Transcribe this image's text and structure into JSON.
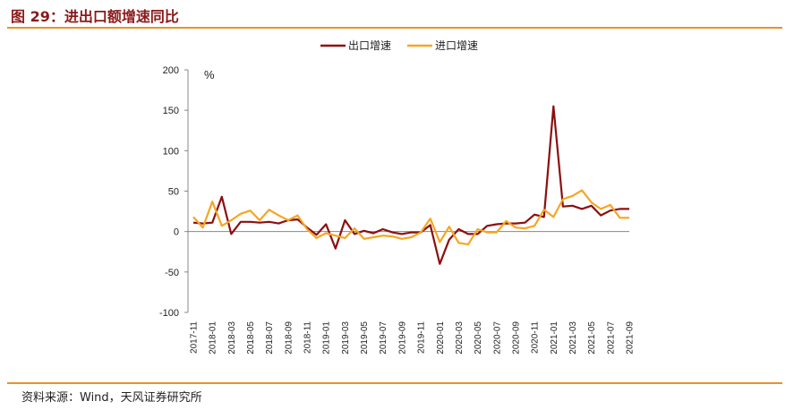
{
  "figure": {
    "title": "图 29：进出口额增速同比",
    "source": "资料来源：Wind，天风证券研究所"
  },
  "chart_data": {
    "type": "line",
    "ylabel": "%",
    "ylim": [
      -100,
      200
    ],
    "yticks": [
      -100,
      -50,
      0,
      50,
      100,
      150,
      200
    ],
    "legend_position": "top-center",
    "grid": false,
    "x_labels": [
      "2017-11",
      "2018-01",
      "2018-03",
      "2018-05",
      "2018-07",
      "2018-09",
      "2018-11",
      "2019-01",
      "2019-03",
      "2019-05",
      "2019-07",
      "2019-09",
      "2019-11",
      "2020-01",
      "2020-03",
      "2020-05",
      "2020-07",
      "2020-09",
      "2020-11",
      "2021-01",
      "2021-03",
      "2021-05",
      "2021-07",
      "2021-09"
    ],
    "x": [
      "2017-11",
      "2017-12",
      "2018-01",
      "2018-02",
      "2018-03",
      "2018-04",
      "2018-05",
      "2018-06",
      "2018-07",
      "2018-08",
      "2018-09",
      "2018-10",
      "2018-11",
      "2018-12",
      "2019-01",
      "2019-02",
      "2019-03",
      "2019-04",
      "2019-05",
      "2019-06",
      "2019-07",
      "2019-08",
      "2019-09",
      "2019-10",
      "2019-11",
      "2019-12",
      "2020-01",
      "2020-02",
      "2020-03",
      "2020-04",
      "2020-05",
      "2020-06",
      "2020-07",
      "2020-08",
      "2020-09",
      "2020-10",
      "2020-11",
      "2020-12",
      "2021-01",
      "2021-02",
      "2021-03",
      "2021-04",
      "2021-05",
      "2021-06",
      "2021-07",
      "2021-08",
      "2021-09"
    ],
    "series": [
      {
        "name": "出口增速",
        "color": "#8b0f0f",
        "values": [
          11,
          10,
          11,
          43,
          -3,
          12,
          12,
          11,
          12,
          10,
          14,
          15,
          5,
          -4,
          9,
          -21,
          14,
          -3,
          1,
          -2,
          3,
          -1,
          -3,
          -1,
          -1,
          8,
          -40,
          -10,
          3,
          -3,
          -3,
          7,
          9,
          10,
          10,
          11,
          21,
          18,
          155,
          31,
          32,
          28,
          32,
          20,
          26,
          28,
          28
        ],
        "values_note": "",
        "line_width": 2.2
      },
      {
        "name": "进口增速",
        "color": "#f5a623",
        "values": [
          18,
          5,
          37,
          7,
          14,
          22,
          26,
          14,
          27,
          20,
          14,
          20,
          3,
          -8,
          -2,
          -5,
          -8,
          4,
          -9,
          -7,
          -5,
          -6,
          -9,
          -7,
          -1,
          16,
          -13,
          6,
          -14,
          -16,
          3,
          -1,
          -1,
          13,
          5,
          4,
          7,
          27,
          18,
          40,
          44,
          51,
          36,
          28,
          33,
          17,
          17
        ],
        "line_width": 2.2
      }
    ]
  }
}
